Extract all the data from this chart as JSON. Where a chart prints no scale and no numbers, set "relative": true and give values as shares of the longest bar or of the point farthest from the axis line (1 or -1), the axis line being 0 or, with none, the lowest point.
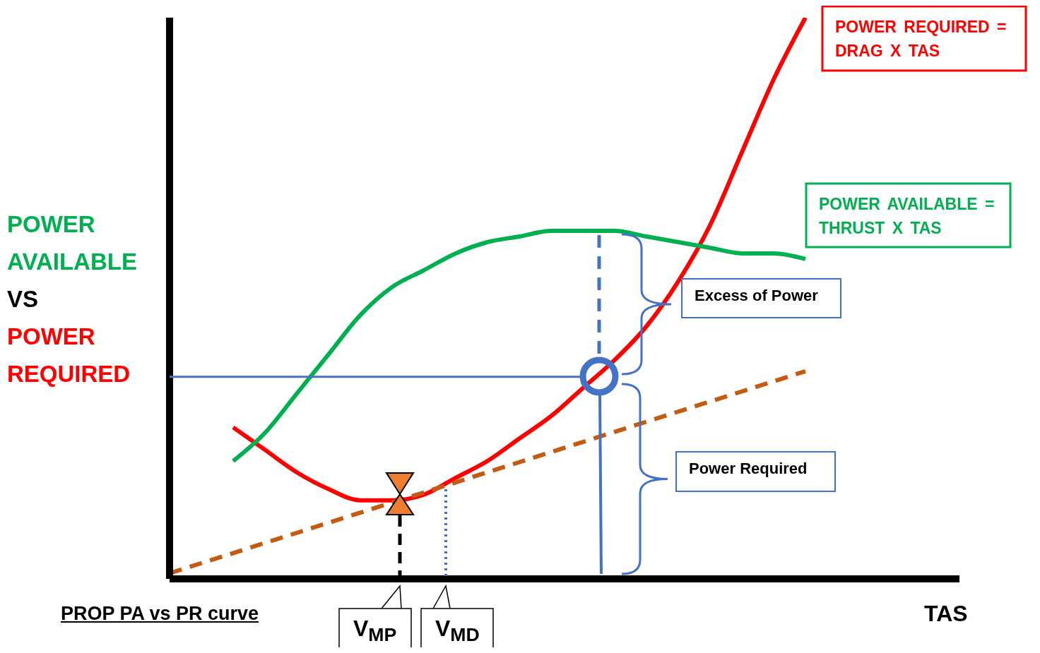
{
  "chart_data": {
    "type": "line",
    "relative": true,
    "title": "PROP PA vs PR curve",
    "xlabel": "TAS",
    "ylabel": "POWER AVAILABLE VS POWER REQUIRED",
    "categories": [
      null,
      null,
      null,
      null,
      null,
      null,
      null,
      null,
      null,
      null,
      null,
      null,
      null,
      null,
      null,
      null,
      null,
      null,
      null,
      null,
      null,
      null,
      null,
      null,
      null
    ],
    "series": [
      {
        "color": "#ff0000",
        "values": [
          null,
          null,
          0.27,
          0.23,
          0.19,
          0.16,
          0.14,
          0.14,
          0.15,
          0.18,
          0.21,
          0.25,
          0.29,
          0.34,
          0.39,
          0.45,
          0.53,
          0.63,
          0.76,
          0.89,
          1,
          null,
          null,
          null,
          null
        ]
      },
      {
        "color": "#00b050",
        "values": [
          null,
          null,
          0.21,
          0.26,
          0.33,
          0.4,
          0.47,
          0.52,
          0.55,
          0.58,
          0.6,
          0.61,
          0.62,
          0.62,
          0.62,
          0.61,
          0.6,
          0.59,
          0.58,
          0.58,
          0.57,
          null,
          null,
          null,
          null
        ]
      },
      {
        "color": "#c55a11",
        "line_style": "dashed",
        "values": [
          0.01,
          null,
          null,
          null,
          null,
          null,
          null,
          null,
          null,
          null,
          null,
          null,
          null,
          null,
          null,
          null,
          null,
          null,
          null,
          null,
          0.37,
          null,
          null,
          null,
          null
        ]
      }
    ],
    "ref_lines": [
      {
        "axis": "y",
        "value": 0.36,
        "color": "#4472c4"
      }
    ],
    "annotations": [
      "POWER REQUIRED = DRAG X TAS",
      "POWER AVAILABLE = THRUST X TAS",
      "Excess of Power",
      "Power Required",
      "V$_{MP}$",
      "V$_{MD}$"
    ]
  }
}
